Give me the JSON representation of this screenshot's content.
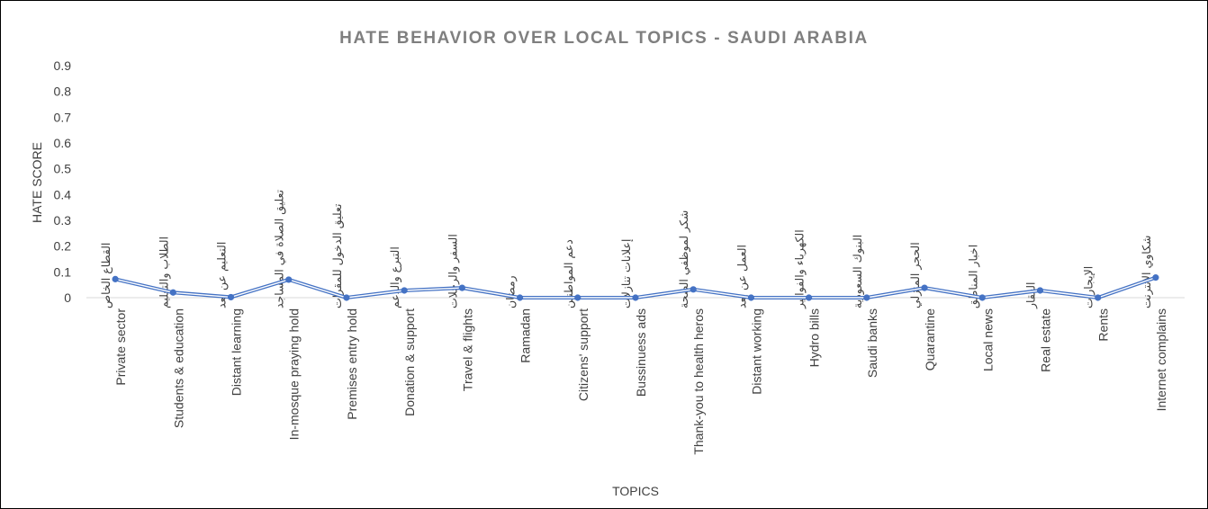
{
  "chart_data": {
    "type": "line",
    "title": "HATE BEHAVIOR OVER LOCAL TOPICS - SAUDI ARABIA",
    "xlabel": "TOPICS",
    "ylabel": "HATE SCORE",
    "ylim": [
      0,
      0.9
    ],
    "yticks": [
      "0",
      "0.1",
      "0.2",
      "0.3",
      "0.4",
      "0.5",
      "0.6",
      "0.7",
      "0.8",
      "0.9"
    ],
    "categories": [
      {
        "ar": "القطاع الخاص",
        "en": "Private sector"
      },
      {
        "ar": "الطلاب والتعليم",
        "en": "Students & education"
      },
      {
        "ar": "التعليم عن بعد",
        "en": "Distant learning"
      },
      {
        "ar": "تعليق الصلاة في المساجد",
        "en": "In-mosque praying hold"
      },
      {
        "ar": "تعليق الدخول للمقرات",
        "en": "Premises entry hold"
      },
      {
        "ar": "التبرع والدعم",
        "en": "Donation & support"
      },
      {
        "ar": "السفر والرحلات",
        "en": "Travel & flights"
      },
      {
        "ar": "رمضان",
        "en": "Ramadan"
      },
      {
        "ar": "دعم المواطنين",
        "en": "Citizens' support"
      },
      {
        "ar": "إعلانات تنازلات",
        "en": "Bussinuess ads"
      },
      {
        "ar": "شكر لموظفي الصحة",
        "en": "Thank-you to health heros"
      },
      {
        "ar": "العمل عن بعد",
        "en": "Distant working"
      },
      {
        "ar": "الكهرباء والفواتير",
        "en": "Hydro bills"
      },
      {
        "ar": "البنوك السعودية",
        "en": "Saudi banks"
      },
      {
        "ar": "الحجر المنزلي",
        "en": "Quarantine"
      },
      {
        "ar": "اخبار المناطق",
        "en": "Local news"
      },
      {
        "ar": "العقار",
        "en": "Real estate"
      },
      {
        "ar": "الإيجارات",
        "en": "Rents"
      },
      {
        "ar": "شكاوي الانترنت",
        "en": "Internet complains"
      }
    ],
    "series": [
      {
        "values": [
          0.072,
          0.02,
          0.002,
          0.07,
          0.0,
          0.028,
          0.038,
          0.0,
          0.0,
          0.0,
          0.032,
          0.0,
          0.0,
          0.0,
          0.038,
          0.0,
          0.028,
          0.0,
          0.078
        ]
      }
    ],
    "grid": false,
    "legend": "none",
    "line_color": "#4472c4"
  }
}
